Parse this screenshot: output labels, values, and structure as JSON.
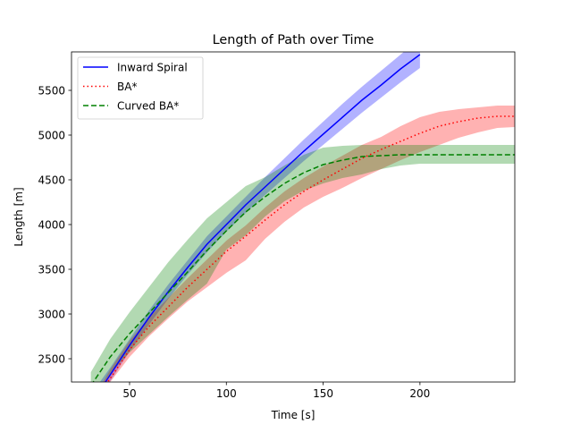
{
  "chart_data": {
    "type": "line",
    "title": "Length of Path over Time",
    "xlabel": "Time [s]",
    "ylabel": "Length [m]",
    "xlim": [
      20,
      249
    ],
    "ylim": [
      2240,
      5930
    ],
    "xticks": [
      50,
      100,
      150,
      200
    ],
    "yticks": [
      2500,
      3000,
      3500,
      4000,
      4500,
      5000,
      5500
    ],
    "grid": false,
    "legend_position": "top-left",
    "series": [
      {
        "name": "Inward Spiral",
        "style": "solid",
        "color": "#0000ff",
        "x": [
          30,
          40,
          50,
          60,
          70,
          80,
          90,
          100,
          110,
          120,
          130,
          140,
          150,
          160,
          170,
          180,
          190,
          200
        ],
        "y": [
          2000,
          2320,
          2650,
          2960,
          3250,
          3520,
          3780,
          4000,
          4220,
          4420,
          4620,
          4820,
          5010,
          5200,
          5390,
          5560,
          5740,
          5900
        ],
        "lower": [
          2050,
          2250,
          2580,
          2880,
          3170,
          3440,
          3690,
          3920,
          4130,
          4330,
          4520,
          4710,
          4890,
          5070,
          5250,
          5420,
          5590,
          5750
        ],
        "upper": [
          2100,
          2400,
          2720,
          3040,
          3330,
          3600,
          3870,
          4090,
          4310,
          4530,
          4740,
          4950,
          5150,
          5350,
          5540,
          5720,
          5900,
          6080
        ]
      },
      {
        "name": "BA*",
        "style": "dotted",
        "color": "#ff0000",
        "x": [
          30,
          40,
          50,
          60,
          70,
          80,
          90,
          100,
          110,
          120,
          130,
          140,
          150,
          160,
          170,
          180,
          190,
          200,
          210,
          220,
          230,
          240,
          249
        ],
        "y": [
          2000,
          2280,
          2600,
          2860,
          3080,
          3300,
          3500,
          3700,
          3870,
          4050,
          4220,
          4370,
          4500,
          4620,
          4740,
          4840,
          4930,
          5020,
          5100,
          5150,
          5190,
          5210,
          5210
        ],
        "lower": [
          2000,
          2240,
          2520,
          2750,
          2950,
          3140,
          3300,
          3460,
          3600,
          3840,
          4030,
          4190,
          4310,
          4410,
          4520,
          4620,
          4720,
          4810,
          4890,
          4970,
          5030,
          5080,
          5090
        ],
        "upper": [
          2000,
          2380,
          2700,
          2960,
          3180,
          3400,
          3610,
          3820,
          3990,
          4190,
          4370,
          4520,
          4650,
          4770,
          4890,
          4980,
          5100,
          5200,
          5260,
          5290,
          5310,
          5330,
          5330
        ]
      },
      {
        "name": "Curved BA*",
        "style": "dashed",
        "color": "#008000",
        "x": [
          30,
          40,
          50,
          60,
          70,
          80,
          90,
          100,
          110,
          120,
          130,
          140,
          150,
          160,
          170,
          180,
          190,
          200,
          210,
          220,
          230,
          240,
          249
        ],
        "y": [
          2200,
          2520,
          2780,
          3010,
          3240,
          3470,
          3710,
          3930,
          4140,
          4310,
          4460,
          4580,
          4670,
          4720,
          4760,
          4770,
          4780,
          4780,
          4780,
          4780,
          4780,
          4780,
          4780
        ],
        "lower": [
          2050,
          2330,
          2570,
          2770,
          2970,
          3160,
          3340,
          3720,
          3880,
          4090,
          4260,
          4380,
          4460,
          4520,
          4560,
          4620,
          4660,
          4680,
          4680,
          4680,
          4680,
          4680,
          4680
        ],
        "upper": [
          2350,
          2720,
          3020,
          3300,
          3580,
          3830,
          4070,
          4250,
          4430,
          4530,
          4660,
          4780,
          4860,
          4880,
          4890,
          4890,
          4890,
          4890,
          4890,
          4890,
          4890,
          4890,
          4890
        ]
      }
    ]
  }
}
